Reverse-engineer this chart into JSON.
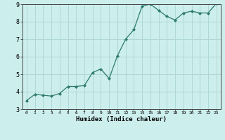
{
  "x": [
    0,
    1,
    2,
    3,
    4,
    5,
    6,
    7,
    8,
    9,
    10,
    11,
    12,
    13,
    14,
    15,
    16,
    17,
    18,
    19,
    20,
    21,
    22,
    23
  ],
  "y": [
    3.5,
    3.85,
    3.8,
    3.75,
    3.9,
    4.3,
    4.3,
    4.35,
    5.1,
    5.3,
    4.75,
    6.05,
    7.0,
    7.55,
    8.9,
    9.0,
    8.65,
    8.3,
    8.1,
    8.5,
    8.6,
    8.5,
    8.5,
    9.05
  ],
  "xlabel": "Humidex (Indice chaleur)",
  "ylim": [
    3,
    9
  ],
  "xlim": [
    -0.5,
    23.5
  ],
  "bg_color": "#cceeed",
  "line_color": "#2d7a6e",
  "grid_color": "#b0d8d4",
  "yticks": [
    3,
    4,
    5,
    6,
    7,
    8,
    9
  ],
  "xtick_labels": [
    "0",
    "1",
    "2",
    "3",
    "4",
    "5",
    "6",
    "7",
    "8",
    "9",
    "10",
    "11",
    "12",
    "13",
    "14",
    "15",
    "16",
    "17",
    "18",
    "19",
    "20",
    "21",
    "22",
    "23"
  ]
}
